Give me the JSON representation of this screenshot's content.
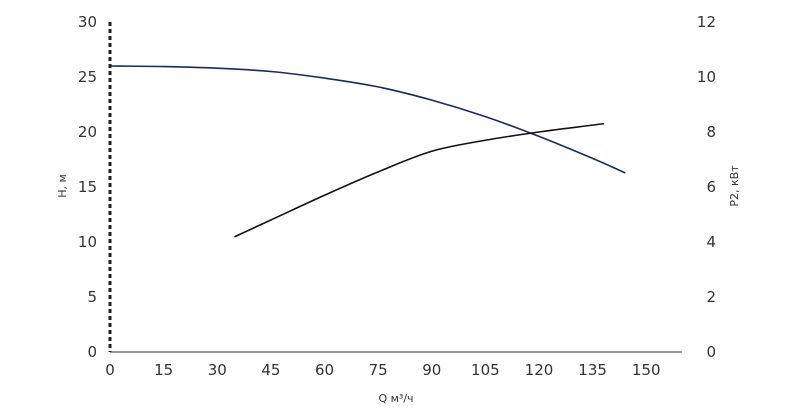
{
  "chart_data": {
    "type": "line",
    "xlabel": "Q м³/ч",
    "ylabel_left": "H, м",
    "ylabel_right": "P2, кВт",
    "xlim": [
      0,
      160
    ],
    "ylim_left": [
      0,
      30
    ],
    "ylim_right": [
      0,
      12
    ],
    "x_ticks": [
      "0",
      "15",
      "30",
      "45",
      "60",
      "75",
      "90",
      "105",
      "120",
      "135",
      "150"
    ],
    "y_left_ticks": [
      "0",
      "5",
      "10",
      "15",
      "20",
      "25",
      "30"
    ],
    "y_right_ticks": [
      "0",
      "2",
      "4",
      "6",
      "8",
      "10",
      "12"
    ],
    "grid": false,
    "colors": {
      "head_curve": "#1b2a5a",
      "power_curve": "#111111",
      "axis": "#333333",
      "dashed_axis": "#222222"
    },
    "series": [
      {
        "axis": "left",
        "x": [
          0,
          15,
          30,
          45,
          60,
          75,
          90,
          105,
          120,
          135,
          144
        ],
        "y": [
          26.0,
          25.95,
          25.8,
          25.5,
          24.9,
          24.1,
          22.9,
          21.4,
          19.6,
          17.6,
          16.3
        ]
      },
      {
        "axis": "right",
        "x": [
          35,
          45,
          60,
          75,
          90,
          105,
          120,
          138
        ],
        "y": [
          4.2,
          4.8,
          5.7,
          6.55,
          7.3,
          7.7,
          8.0,
          8.3
        ]
      }
    ]
  }
}
